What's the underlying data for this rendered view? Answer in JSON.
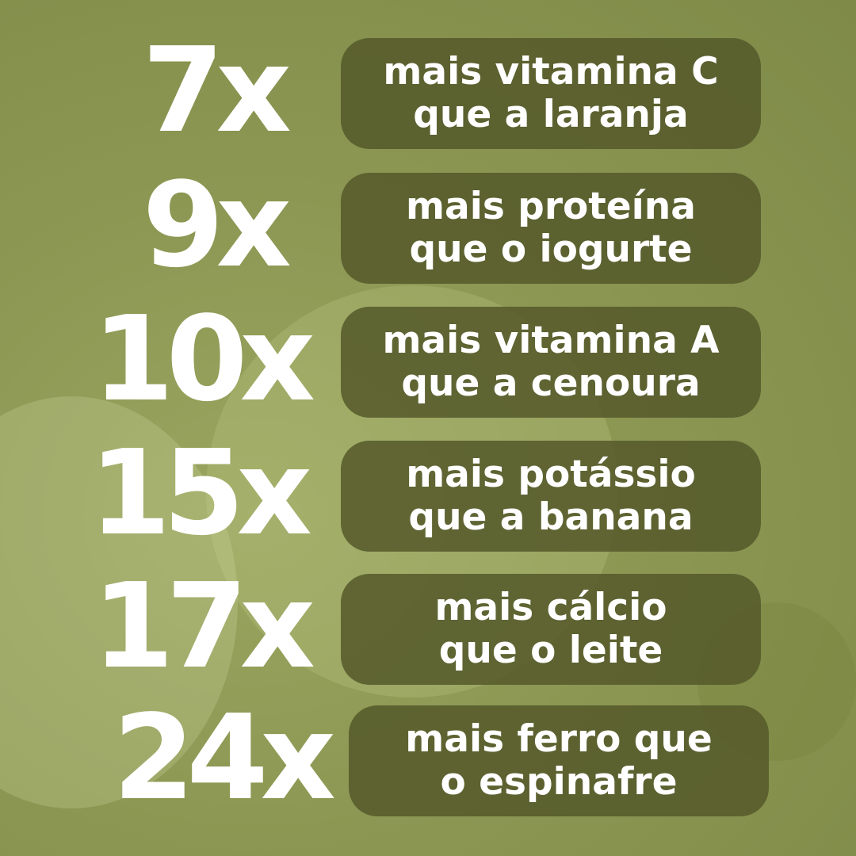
{
  "colors": {
    "background": "#8b9752",
    "pill": "#5f6333",
    "text": "#ffffff"
  },
  "items": [
    {
      "multiplier": "7x",
      "line1": "mais vitamina C",
      "line2": "que a laranja"
    },
    {
      "multiplier": "9x",
      "line1": "mais proteína",
      "line2": "que o iogurte"
    },
    {
      "multiplier": "10x",
      "line1": "mais vitamina A",
      "line2": "que a cenoura"
    },
    {
      "multiplier": "15x",
      "line1": "mais potássio",
      "line2": "que a banana"
    },
    {
      "multiplier": "17x",
      "line1": "mais cálcio",
      "line2": "que o leite"
    },
    {
      "multiplier": "24x",
      "line1": "mais ferro que",
      "line2": "o espinafre"
    }
  ]
}
